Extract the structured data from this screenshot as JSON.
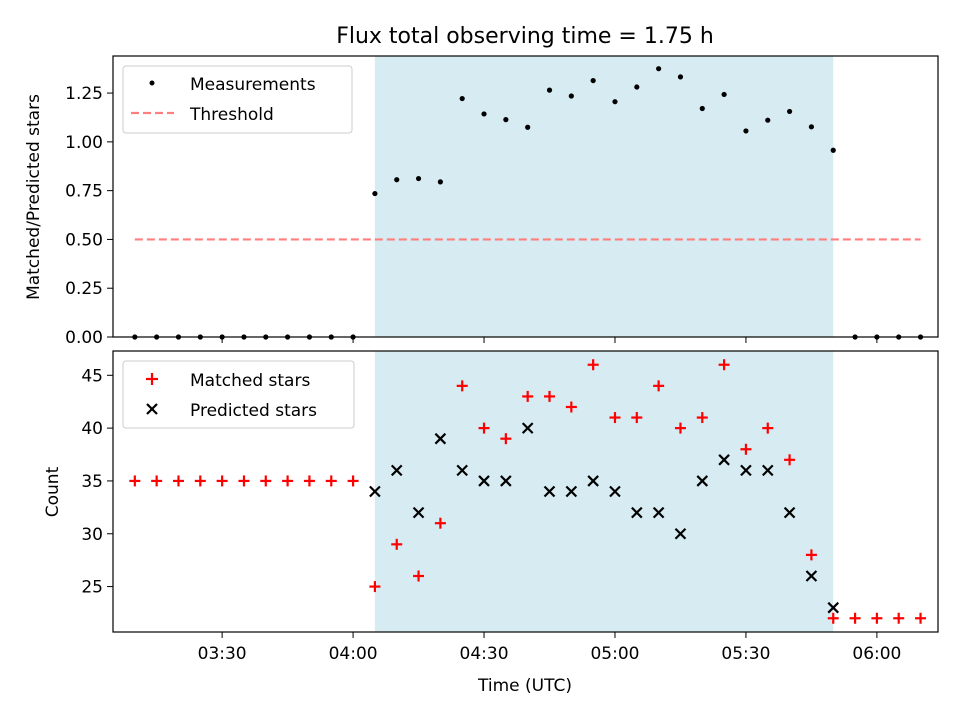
{
  "title": "Flux total observing time = 1.75 h",
  "colors": {
    "band": "#add8e6",
    "measurement": "#000000",
    "threshold": "#ff7f7f",
    "matched": "#ff0000",
    "predicted": "#000000"
  },
  "chart_data": [
    {
      "type": "scatter",
      "ylabel": "Matched/Predicted stars",
      "ylim": [
        0,
        1.44
      ],
      "yticks": [
        "0.00",
        "0.25",
        "0.50",
        "0.75",
        "1.00",
        "1.25"
      ],
      "legend_position": "upper-left",
      "legend": [
        {
          "key": "measurements",
          "label": "Measurements"
        },
        {
          "key": "threshold",
          "label": "Threshold"
        }
      ],
      "series": [
        {
          "name": "Measurements",
          "x": [
            "03:10",
            "03:15",
            "03:20",
            "03:25",
            "03:30",
            "03:35",
            "03:40",
            "03:45",
            "03:50",
            "03:55",
            "04:00",
            "04:05",
            "04:10",
            "04:15",
            "04:20",
            "04:25",
            "04:30",
            "04:35",
            "04:40",
            "04:45",
            "04:50",
            "04:55",
            "05:00",
            "05:05",
            "05:10",
            "05:15",
            "05:20",
            "05:25",
            "05:30",
            "05:35",
            "05:40",
            "05:45",
            "05:50",
            "05:55",
            "06:00",
            "06:05",
            "06:10"
          ],
          "y": [
            0,
            0,
            0,
            0,
            0,
            0,
            0,
            0,
            0,
            0,
            0,
            0.735,
            0.806,
            0.812,
            0.795,
            1.222,
            1.143,
            1.114,
            1.075,
            1.265,
            1.235,
            1.314,
            1.206,
            1.281,
            1.375,
            1.333,
            1.171,
            1.243,
            1.056,
            1.111,
            1.156,
            1.077,
            0.957,
            0,
            0,
            0,
            0
          ]
        },
        {
          "name": "Threshold",
          "x": [
            "03:10",
            "06:10"
          ],
          "y": [
            0.5,
            0.5
          ]
        }
      ],
      "shaded_interval": [
        "04:05",
        "05:50"
      ]
    },
    {
      "type": "scatter",
      "xlabel": "Time (UTC)",
      "ylabel": "Count",
      "ylim": [
        20.7,
        47.3
      ],
      "yticks": [
        "25",
        "30",
        "35",
        "40",
        "45"
      ],
      "xticks": [
        "03:30",
        "04:00",
        "04:30",
        "05:00",
        "05:30",
        "06:00"
      ],
      "legend_position": "upper-left",
      "legend": [
        {
          "key": "matched",
          "label": "Matched stars"
        },
        {
          "key": "predicted",
          "label": "Predicted stars"
        }
      ],
      "series": [
        {
          "name": "Matched stars",
          "x": [
            "03:10",
            "03:15",
            "03:20",
            "03:25",
            "03:30",
            "03:35",
            "03:40",
            "03:45",
            "03:50",
            "03:55",
            "04:00",
            "04:05",
            "04:10",
            "04:15",
            "04:20",
            "04:25",
            "04:30",
            "04:35",
            "04:40",
            "04:45",
            "04:50",
            "04:55",
            "05:00",
            "05:05",
            "05:10",
            "05:15",
            "05:20",
            "05:25",
            "05:30",
            "05:35",
            "05:40",
            "05:45",
            "05:50",
            "05:55",
            "06:00",
            "06:05",
            "06:10"
          ],
          "y": [
            35,
            35,
            35,
            35,
            35,
            35,
            35,
            35,
            35,
            35,
            35,
            25,
            29,
            26,
            31,
            44,
            40,
            39,
            43,
            43,
            42,
            46,
            41,
            41,
            44,
            40,
            41,
            46,
            38,
            40,
            37,
            28,
            22,
            22,
            22,
            22,
            22
          ]
        },
        {
          "name": "Predicted stars",
          "x": [
            "04:05",
            "04:10",
            "04:15",
            "04:20",
            "04:25",
            "04:30",
            "04:35",
            "04:40",
            "04:45",
            "04:50",
            "04:55",
            "05:00",
            "05:05",
            "05:10",
            "05:15",
            "05:20",
            "05:25",
            "05:30",
            "05:35",
            "05:40",
            "05:45",
            "05:50"
          ],
          "y": [
            34,
            36,
            32,
            39,
            36,
            35,
            35,
            40,
            34,
            34,
            35,
            34,
            32,
            32,
            30,
            35,
            37,
            36,
            36,
            32,
            26,
            23
          ]
        }
      ],
      "shaded_interval": [
        "04:05",
        "05:50"
      ]
    }
  ]
}
